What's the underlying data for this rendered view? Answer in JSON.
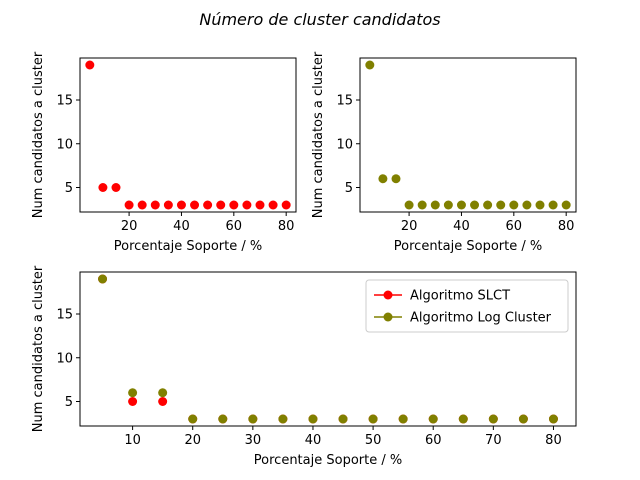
{
  "suptitle": "Número de cluster candidatos",
  "colors": {
    "slct": "#ff0000",
    "logcluster": "#808000"
  },
  "chart_data": [
    {
      "type": "scatter",
      "xlabel": "Porcentaje Soporte / %",
      "ylabel": "Num candidatos a cluster",
      "xlim": [
        1.25,
        83.75
      ],
      "ylim": [
        2.2,
        19.8
      ],
      "xticks": [
        20,
        40,
        60,
        80
      ],
      "yticks": [
        5,
        10,
        15
      ],
      "grid": false,
      "series": [
        {
          "color": "#ff0000",
          "x": [
            5,
            10,
            15,
            20,
            25,
            30,
            35,
            40,
            45,
            50,
            55,
            60,
            65,
            70,
            75,
            80
          ],
          "y": [
            19,
            5,
            5,
            3,
            3,
            3,
            3,
            3,
            3,
            3,
            3,
            3,
            3,
            3,
            3,
            3
          ]
        }
      ]
    },
    {
      "type": "scatter",
      "xlabel": "Porcentaje Soporte / %",
      "ylabel": "Num candidatos a cluster",
      "xlim": [
        1.25,
        83.75
      ],
      "ylim": [
        2.2,
        19.8
      ],
      "xticks": [
        20,
        40,
        60,
        80
      ],
      "yticks": [
        5,
        10,
        15
      ],
      "grid": false,
      "series": [
        {
          "color": "#808000",
          "x": [
            5,
            10,
            15,
            20,
            25,
            30,
            35,
            40,
            45,
            50,
            55,
            60,
            65,
            70,
            75,
            80
          ],
          "y": [
            19,
            6,
            6,
            3,
            3,
            3,
            3,
            3,
            3,
            3,
            3,
            3,
            3,
            3,
            3,
            3
          ]
        }
      ]
    },
    {
      "type": "line",
      "xlabel": "Porcentaje Soporte / %",
      "ylabel": "Num candidatos a cluster",
      "xlim": [
        1.25,
        83.75
      ],
      "ylim": [
        2.2,
        19.8
      ],
      "xticks": [
        10,
        20,
        30,
        40,
        50,
        60,
        70,
        80
      ],
      "yticks": [
        5,
        10,
        15
      ],
      "grid": false,
      "legend": "upper right",
      "series": [
        {
          "name": "Algoritmo SLCT",
          "color": "#ff0000",
          "x": [
            5,
            10,
            15,
            20,
            25,
            30,
            35,
            40,
            45,
            50,
            55,
            60,
            65,
            70,
            75,
            80
          ],
          "y": [
            19,
            5,
            5,
            3,
            3,
            3,
            3,
            3,
            3,
            3,
            3,
            3,
            3,
            3,
            3,
            3
          ]
        },
        {
          "name": "Algoritmo Log Cluster",
          "color": "#808000",
          "x": [
            5,
            10,
            15,
            20,
            25,
            30,
            35,
            40,
            45,
            50,
            55,
            60,
            65,
            70,
            75,
            80
          ],
          "y": [
            19,
            6,
            6,
            3,
            3,
            3,
            3,
            3,
            3,
            3,
            3,
            3,
            3,
            3,
            3,
            3
          ]
        }
      ]
    }
  ]
}
